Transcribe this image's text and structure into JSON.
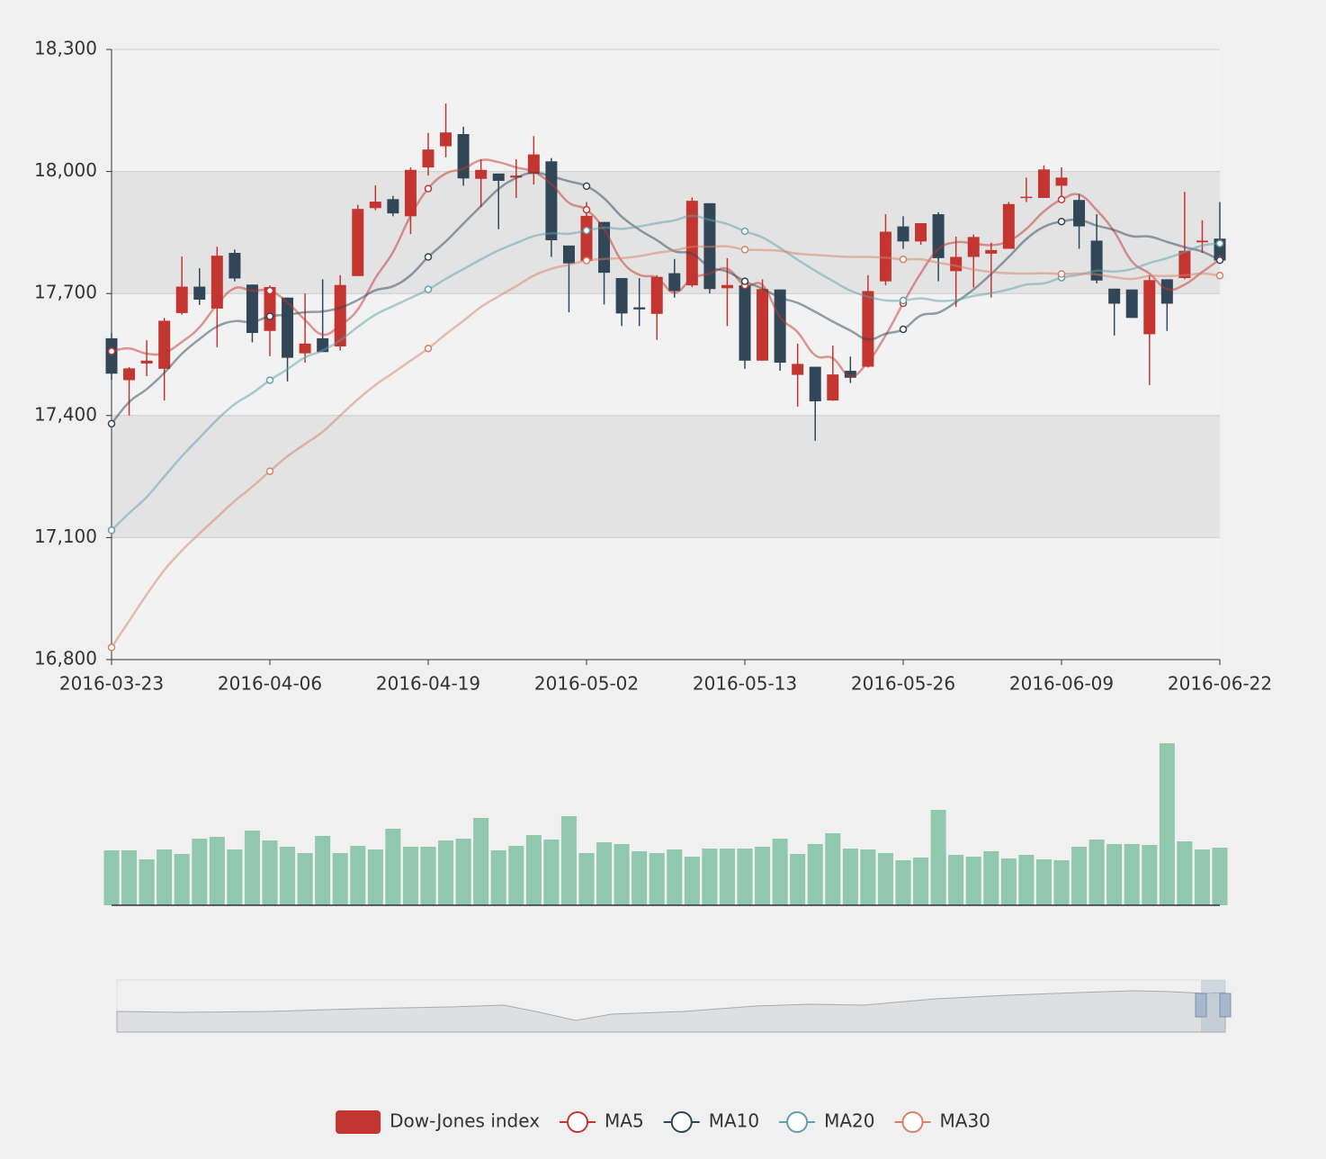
{
  "chart_data": [
    {
      "type": "candlestick",
      "categories": [
        "2016-03-23",
        null,
        null,
        null,
        null,
        null,
        null,
        null,
        null,
        "2016-04-06",
        null,
        null,
        null,
        null,
        null,
        null,
        null,
        null,
        "2016-04-19",
        null,
        null,
        null,
        null,
        null,
        null,
        null,
        null,
        "2016-05-02",
        null,
        null,
        null,
        null,
        null,
        null,
        null,
        null,
        "2016-05-13",
        null,
        null,
        null,
        null,
        null,
        null,
        null,
        null,
        "2016-05-26",
        null,
        null,
        null,
        null,
        null,
        null,
        null,
        null,
        "2016-06-09",
        null,
        null,
        null,
        null,
        null,
        null,
        null,
        null,
        "2016-06-22"
      ],
      "ylim": [
        16800,
        18300
      ],
      "yticks": [
        {
          "value": 16800,
          "label": "16,800"
        },
        {
          "value": 17100,
          "label": "17,100"
        },
        {
          "value": 17400,
          "label": "17,400"
        },
        {
          "value": 17700,
          "label": "17,700"
        },
        {
          "value": 18000,
          "label": "18,000"
        },
        {
          "value": 18300,
          "label": "18,300"
        }
      ],
      "split_area_colors": [
        "#f2f2f2",
        "#e3e3e3"
      ],
      "legend": "bottom",
      "series": [
        {
          "name": "Dow-Jones index",
          "type": "candlestick",
          "color": "#c23531",
          "down_color": "#314656",
          "values": [
            [
              17590,
              17503,
              17488,
              17603
            ],
            [
              17487,
              17516,
              17400,
              17519
            ],
            [
              17528,
              17535,
              17497,
              17585
            ],
            [
              17515,
              17633,
              17437,
              17640
            ],
            [
              17652,
              17717,
              17648,
              17791
            ],
            [
              17717,
              17685,
              17672,
              17762
            ],
            [
              17663,
              17793,
              17568,
              17815
            ],
            [
              17800,
              17737,
              17730,
              17808
            ],
            [
              17722,
              17603,
              17580,
              17722
            ],
            [
              17608,
              17716,
              17546,
              17720
            ],
            [
              17690,
              17542,
              17484,
              17690
            ],
            [
              17553,
              17577,
              17530,
              17700
            ],
            [
              17590,
              17556,
              17556,
              17735
            ],
            [
              17570,
              17721,
              17560,
              17745
            ],
            [
              17743,
              17908,
              17743,
              17918
            ],
            [
              17910,
              17926,
              17905,
              17966
            ],
            [
              17932,
              17897,
              17890,
              17940
            ],
            [
              17890,
              18004,
              17846,
              18010
            ],
            [
              18010,
              18054,
              17990,
              18095
            ],
            [
              18062,
              18096,
              18035,
              18167
            ],
            [
              18092,
              17983,
              17965,
              18110
            ],
            [
              17982,
              18004,
              17913,
              18030
            ],
            [
              17995,
              17977,
              17858,
              17995
            ],
            [
              17985,
              17990,
              17935,
              18030
            ],
            [
              17995,
              18042,
              17968,
              18087
            ],
            [
              18025,
              17831,
              17790,
              18033
            ],
            [
              17818,
              17774,
              17654,
              17818
            ],
            [
              17780,
              17891,
              17775,
              17925
            ],
            [
              17876,
              17751,
              17673,
              17876
            ],
            [
              17738,
              17651,
              17620,
              17738
            ],
            [
              17666,
              17661,
              17620,
              17738
            ],
            [
              17650,
              17741,
              17586,
              17745
            ],
            [
              17750,
              17706,
              17690,
              17785
            ],
            [
              17720,
              17928,
              17716,
              17936
            ],
            [
              17922,
              17711,
              17700,
              17922
            ],
            [
              17713,
              17721,
              17620,
              17787
            ],
            [
              17720,
              17535,
              17515,
              17730
            ],
            [
              17535,
              17711,
              17535,
              17735
            ],
            [
              17710,
              17530,
              17510,
              17710
            ],
            [
              17500,
              17527,
              17422,
              17577
            ],
            [
              17520,
              17435,
              17338,
              17520
            ],
            [
              17437,
              17501,
              17436,
              17572
            ],
            [
              17510,
              17493,
              17480,
              17545
            ],
            [
              17520,
              17706,
              17518,
              17745
            ],
            [
              17730,
              17852,
              17720,
              17895
            ],
            [
              17865,
              17828,
              17810,
              17890
            ],
            [
              17828,
              17873,
              17820,
              17873
            ],
            [
              17895,
              17787,
              17730,
              17900
            ],
            [
              17755,
              17790,
              17667,
              17840
            ],
            [
              17790,
              17839,
              17715,
              17845
            ],
            [
              17798,
              17807,
              17690,
              17825
            ],
            [
              17810,
              17920,
              17810,
              17925
            ],
            [
              17935,
              17938,
              17925,
              17985
            ],
            [
              17935,
              18005,
              17935,
              18015
            ],
            [
              17965,
              17985,
              17925,
              18010
            ],
            [
              17930,
              17865,
              17810,
              17945
            ],
            [
              17830,
              17732,
              17725,
              17895
            ],
            [
              17712,
              17675,
              17597,
              17712
            ],
            [
              17710,
              17640,
              17640,
              17710
            ],
            [
              17600,
              17733,
              17475,
              17745
            ],
            [
              17735,
              17675,
              17608,
              17735
            ],
            [
              17738,
              17805,
              17735,
              17950
            ],
            [
              17826,
              17830,
              17800,
              17880
            ],
            [
              17835,
              17781,
              17781,
              17925
            ]
          ]
        },
        {
          "name": "MA5",
          "type": "line",
          "color": "#c23531",
          "values": [
            17558,
            17565,
            17552,
            17554,
            17581,
            17617,
            17673,
            17713,
            17707,
            17707,
            17678,
            17635,
            17599,
            17622,
            17661,
            17738,
            17802,
            17891,
            17958,
            17995,
            18007,
            18028,
            18023,
            18010,
            17999,
            17969,
            17923,
            17906,
            17858,
            17780,
            17746,
            17739,
            17702,
            17737,
            17749,
            17761,
            17720,
            17721,
            17642,
            17605,
            17548,
            17541,
            17497,
            17532,
            17597,
            17676,
            17750,
            17809,
            17826,
            17823,
            17819,
            17829,
            17859,
            17902,
            17931,
            17943,
            17905,
            17852,
            17779,
            17749,
            17711,
            17722,
            17753,
            17784
          ]
        },
        {
          "name": "MA10",
          "type": "line",
          "color": "#2f4554",
          "values": [
            17380,
            17433,
            17465,
            17505,
            17552,
            17588,
            17619,
            17632,
            17630,
            17644,
            17648,
            17654,
            17656,
            17665,
            17684,
            17708,
            17718,
            17745,
            17790,
            17828,
            17872,
            17915,
            17957,
            17984,
            17997,
            17988,
            17976,
            17964,
            17934,
            17889,
            17857,
            17831,
            17804,
            17798,
            17765,
            17754,
            17730,
            17712,
            17690,
            17677,
            17655,
            17631,
            17609,
            17587,
            17601,
            17612,
            17646,
            17653,
            17679,
            17710,
            17748,
            17790,
            17834,
            17864,
            17877,
            17881,
            17867,
            17856,
            17841,
            17840,
            17827,
            17814,
            17803,
            17782
          ]
        },
        {
          "name": "MA20",
          "type": "line",
          "color": "#61a0a8",
          "values": [
            17118,
            17160,
            17200,
            17250,
            17300,
            17345,
            17390,
            17428,
            17455,
            17487,
            17514,
            17543,
            17560,
            17585,
            17618,
            17648,
            17669,
            17689,
            17710,
            17736,
            17760,
            17784,
            17806,
            17824,
            17841,
            17848,
            17847,
            17855,
            17862,
            17859,
            17865,
            17873,
            17880,
            17891,
            17881,
            17871,
            17853,
            17838,
            17812,
            17783,
            17756,
            17731,
            17707,
            17692,
            17683,
            17683,
            17688,
            17682,
            17684,
            17694,
            17701,
            17710,
            17722,
            17725,
            17739,
            17746,
            17756,
            17754,
            17760,
            17775,
            17787,
            17802,
            17818,
            17823
          ]
        },
        {
          "name": "MA30",
          "type": "line",
          "color": "#d48265",
          "values": [
            16830,
            16895,
            16960,
            17020,
            17068,
            17110,
            17150,
            17190,
            17225,
            17263,
            17300,
            17330,
            17360,
            17400,
            17440,
            17475,
            17505,
            17535,
            17565,
            17600,
            17633,
            17667,
            17693,
            17718,
            17744,
            17761,
            17771,
            17781,
            17785,
            17787,
            17792,
            17800,
            17806,
            17815,
            17815,
            17816,
            17808,
            17807,
            17805,
            17798,
            17795,
            17792,
            17790,
            17790,
            17788,
            17784,
            17784,
            17776,
            17768,
            17759,
            17753,
            17750,
            17749,
            17750,
            17748,
            17749,
            17747,
            17740,
            17736,
            17743,
            17743,
            17745,
            17749,
            17744
          ]
        }
      ]
    },
    {
      "type": "bar",
      "color": "#91c7ae",
      "ylim": [
        0,
        180
      ],
      "values": [
        61,
        61,
        51,
        62,
        57,
        74,
        76,
        62,
        83,
        72,
        65,
        58,
        77,
        58,
        66,
        62,
        85,
        65,
        65,
        72,
        74,
        97,
        61,
        66,
        78,
        73,
        99,
        58,
        70,
        68,
        60,
        58,
        62,
        54,
        63,
        63,
        63,
        65,
        74,
        57,
        68,
        80,
        63,
        62,
        58,
        50,
        53,
        106,
        56,
        54,
        60,
        52,
        56,
        51,
        50,
        65,
        73,
        68,
        68,
        67,
        180,
        71,
        62,
        64
      ]
    }
  ]
}
